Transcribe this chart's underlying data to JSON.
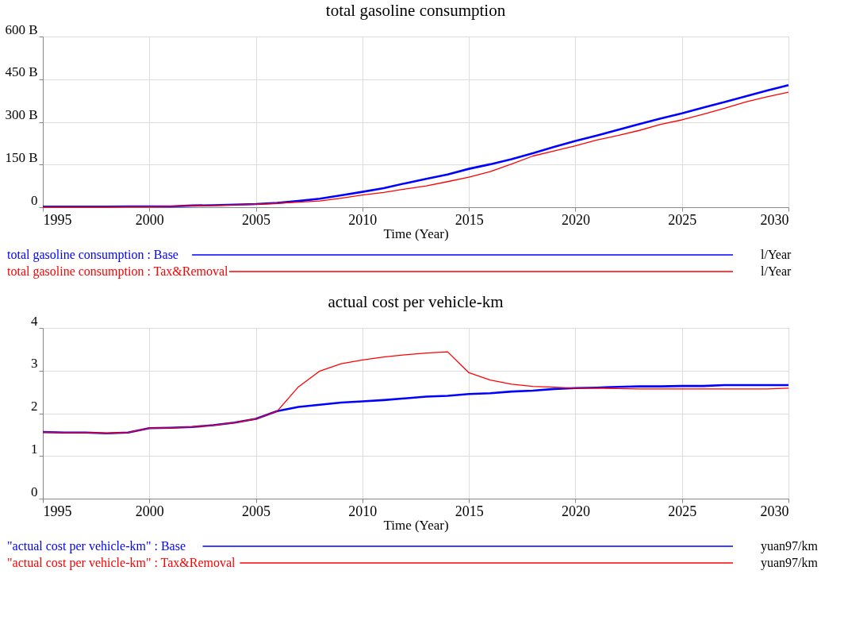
{
  "chart_data": [
    {
      "type": "line",
      "title": "total gasoline consumption",
      "xlabel": "Time (Year)",
      "x": [
        1995,
        1996,
        1997,
        1998,
        1999,
        2000,
        2001,
        2002,
        2003,
        2004,
        2005,
        2006,
        2007,
        2008,
        2009,
        2010,
        2011,
        2012,
        2013,
        2014,
        2015,
        2016,
        2017,
        2018,
        2019,
        2020,
        2021,
        2022,
        2023,
        2024,
        2025,
        2026,
        2027,
        2028,
        2029,
        2030
      ],
      "series": [
        {
          "name": "total gasoline consumption : Base",
          "color": "#0000ff",
          "values": [
            2,
            2,
            2,
            2,
            3,
            3,
            3,
            6,
            7,
            9,
            11,
            15,
            22,
            30,
            42,
            54,
            67,
            84,
            100,
            115,
            135,
            151,
            169,
            190,
            212,
            233,
            252,
            272,
            292,
            312,
            330,
            350,
            370,
            390,
            410,
            429
          ]
        },
        {
          "name": "total gasoline consumption : Tax&Removal",
          "color": "#ff0000",
          "values": [
            1,
            1,
            1,
            1,
            2,
            2,
            3,
            5,
            6,
            8,
            10,
            14,
            18,
            22,
            32,
            43,
            52,
            64,
            75,
            90,
            106,
            125,
            152,
            180,
            198,
            216,
            236,
            252,
            270,
            291,
            307,
            327,
            348,
            370,
            388,
            404
          ]
        }
      ],
      "annotations": [
        "l/Year",
        "l/Year"
      ],
      "xlim": [
        1995,
        2030
      ],
      "xticks": [
        1995,
        2000,
        2005,
        2010,
        2015,
        2020,
        2025,
        2030
      ],
      "ylim": [
        0,
        600
      ],
      "yticks": [
        0,
        {
          "value": 150,
          "label": "150 B"
        },
        {
          "value": 300,
          "label": "300 B"
        },
        {
          "value": 450,
          "label": "450 B"
        },
        {
          "value": 600,
          "label": "600 B"
        }
      ],
      "grid": true,
      "legend": "bottom",
      "line_style": "solid"
    },
    {
      "type": "line",
      "title": "actual cost per vehicle-km",
      "xlabel": "Time (Year)",
      "x": [
        1995,
        1996,
        1997,
        1998,
        1999,
        2000,
        2001,
        2002,
        2003,
        2004,
        2005,
        2006,
        2007,
        2008,
        2009,
        2010,
        2011,
        2012,
        2013,
        2014,
        2015,
        2016,
        2017,
        2018,
        2019,
        2020,
        2021,
        2022,
        2023,
        2024,
        2025,
        2026,
        2027,
        2028,
        2029,
        2030
      ],
      "series": [
        {
          "name": "\"actual cost per vehicle-km\" : Base",
          "color": "#0000ff",
          "values": [
            1.56,
            1.55,
            1.55,
            1.53,
            1.55,
            1.65,
            1.66,
            1.68,
            1.72,
            1.78,
            1.87,
            2.05,
            2.15,
            2.2,
            2.25,
            2.28,
            2.31,
            2.35,
            2.39,
            2.41,
            2.45,
            2.47,
            2.51,
            2.53,
            2.57,
            2.59,
            2.6,
            2.62,
            2.63,
            2.63,
            2.64,
            2.64,
            2.66,
            2.66,
            2.66,
            2.66
          ]
        },
        {
          "name": "\"actual cost per vehicle-km\" : Tax&Removal",
          "color": "#ff0000",
          "values": [
            1.56,
            1.55,
            1.55,
            1.53,
            1.55,
            1.65,
            1.66,
            1.68,
            1.72,
            1.78,
            1.87,
            2.05,
            2.62,
            2.99,
            3.16,
            3.25,
            3.32,
            3.37,
            3.41,
            3.44,
            2.95,
            2.78,
            2.68,
            2.63,
            2.61,
            2.59,
            2.59,
            2.58,
            2.57,
            2.57,
            2.57,
            2.57,
            2.57,
            2.57,
            2.57,
            2.59
          ]
        }
      ],
      "annotations": [
        "yuan97/km",
        "yuan97/km"
      ],
      "xlim": [
        1995,
        2030
      ],
      "xticks": [
        1995,
        2000,
        2005,
        2010,
        2015,
        2020,
        2025,
        2030
      ],
      "ylim": [
        0,
        4
      ],
      "yticks": [
        0,
        1,
        2,
        3,
        4
      ],
      "grid": true,
      "legend": "bottom",
      "line_style": "solid"
    }
  ]
}
